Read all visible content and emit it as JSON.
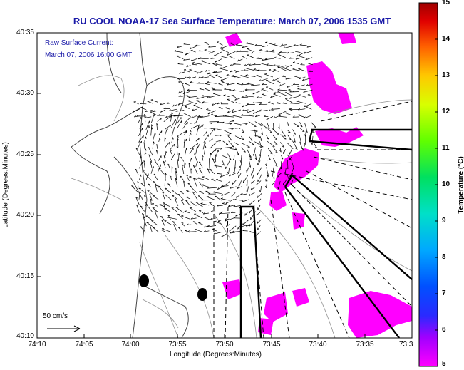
{
  "title": "RU COOL  NOAA-17  Sea Surface Temperature:  March 07, 2006 1535 GMT",
  "overlay": {
    "line1": "Raw Surface Current:",
    "line2": "March 07, 2006 16:00 GMT"
  },
  "axes": {
    "xlabel": "Longitude (Degrees:Minutes)",
    "ylabel": "Latitude (Degrees:Minutes)",
    "xticks": [
      "74:10",
      "74:05",
      "74:00",
      "73:55",
      "73:50",
      "73:45",
      "73:40",
      "73:35",
      "73:3"
    ],
    "yticks": [
      "40:35",
      "40:30",
      "40:25",
      "40:20",
      "40:15",
      "40:10"
    ]
  },
  "scale": {
    "label": "50 cm/s"
  },
  "colorbar": {
    "label": "Temperature (°C)",
    "ticks": [
      "15",
      "14",
      "13",
      "12",
      "11",
      "10",
      "9",
      "8",
      "7",
      "6",
      "5"
    ]
  },
  "colors": {
    "title": "#1a1aa8",
    "sst_patch": "#ff00ff",
    "frame": "#000000"
  }
}
